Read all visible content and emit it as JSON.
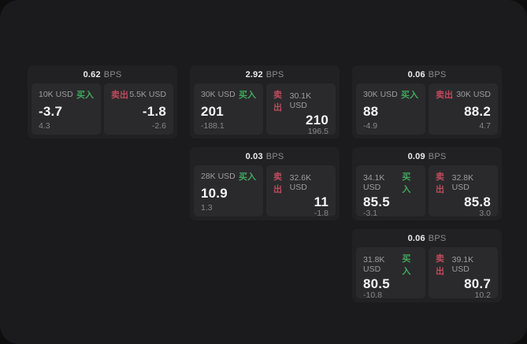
{
  "labels": {
    "buy": "买入",
    "sell": "卖出",
    "bps": "BPS"
  },
  "colors": {
    "backdrop": "#0e0e0e",
    "panel_bg": "#1b1b1d",
    "card_bg": "#212123",
    "tile_bg": "#2a2a2c",
    "buy_green": "#42a85f",
    "sell_red": "#bd4b5d",
    "label_gray": "#9d9da1",
    "value_white": "#f4f4f5",
    "muted_gray": "#87878b"
  },
  "cards": [
    {
      "bps": "0.62",
      "buy": {
        "size": "10K USD",
        "price": "-3.7",
        "delta": "4.3"
      },
      "sell": {
        "size": "5.5K USD",
        "price": "-1.8",
        "delta": "-2.6"
      }
    },
    {
      "bps": "2.92",
      "buy": {
        "size": "30K USD",
        "price": "201",
        "delta": "-188.1"
      },
      "sell": {
        "size": "30.1K USD",
        "price": "210",
        "delta": "196.5"
      }
    },
    {
      "bps": "0.06",
      "buy": {
        "size": "30K USD",
        "price": "88",
        "delta": "-4.9"
      },
      "sell": {
        "size": "30K USD",
        "price": "88.2",
        "delta": "4.7"
      }
    },
    {
      "bps": "0.03",
      "buy": {
        "size": "28K USD",
        "price": "10.9",
        "delta": "1.3"
      },
      "sell": {
        "size": "32.6K USD",
        "price": "11",
        "delta": "-1.8"
      }
    },
    {
      "bps": "0.09",
      "buy": {
        "size": "34.1K USD",
        "price": "85.5",
        "delta": "-3.1"
      },
      "sell": {
        "size": "32.8K USD",
        "price": "85.8",
        "delta": "3.0"
      }
    },
    {
      "bps": "0.06",
      "buy": {
        "size": "31.8K USD",
        "price": "80.5",
        "delta": "-10.8"
      },
      "sell": {
        "size": "39.1K USD",
        "price": "80.7",
        "delta": "10.2"
      }
    }
  ]
}
